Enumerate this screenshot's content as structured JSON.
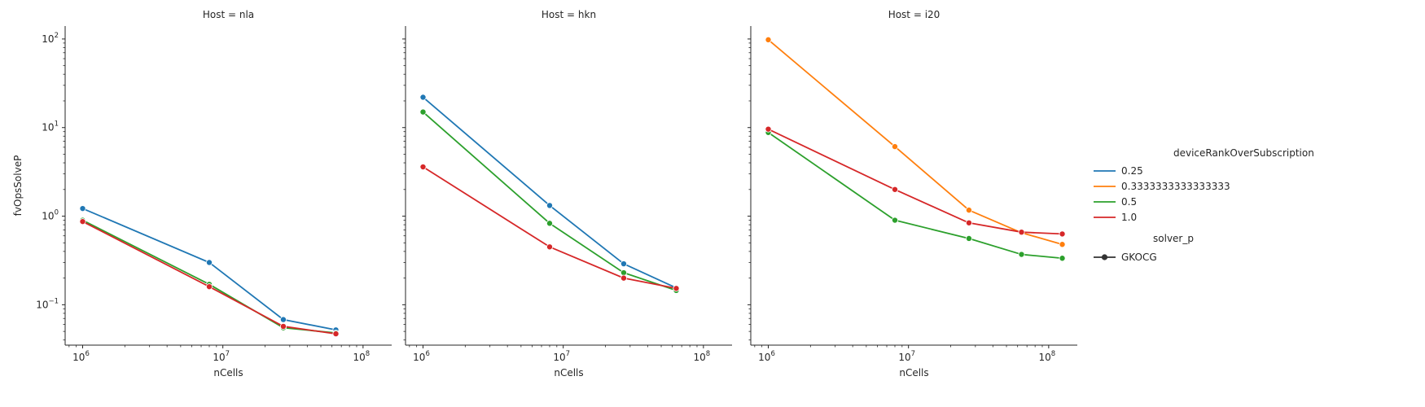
{
  "chart_data": [
    {
      "type": "line",
      "title": "Host = nla",
      "xlabel": "nCells",
      "ylabel": "fvOpsSolveP",
      "xscale": "log",
      "yscale": "log",
      "xlim": [
        750000,
        160000000
      ],
      "ylim": [
        0.035,
        140
      ],
      "xticks": [
        {
          "v": 1000000,
          "b": "10",
          "e": "6"
        },
        {
          "v": 10000000,
          "b": "10",
          "e": "7"
        },
        {
          "v": 100000000,
          "b": "10",
          "e": "8"
        }
      ],
      "yticks": [
        {
          "v": 0.1,
          "b": "10",
          "e": "−1"
        },
        {
          "v": 1,
          "b": "10",
          "e": "0"
        },
        {
          "v": 10,
          "b": "10",
          "e": "1"
        },
        {
          "v": 100,
          "b": "10",
          "e": "2"
        }
      ],
      "grid": false,
      "series": [
        {
          "name": "0.25",
          "color": "#1f77b4",
          "x": [
            1000000,
            8000000,
            27000000,
            64000000
          ],
          "y": [
            1.22,
            0.3,
            0.068,
            0.052
          ]
        },
        {
          "name": "0.5",
          "color": "#2ca02c",
          "x": [
            1000000,
            8000000,
            27000000,
            64000000
          ],
          "y": [
            0.9,
            0.17,
            0.055,
            0.048
          ]
        },
        {
          "name": "1.0",
          "color": "#d62728",
          "x": [
            1000000,
            8000000,
            27000000,
            64000000
          ],
          "y": [
            0.87,
            0.16,
            0.057,
            0.047
          ]
        }
      ]
    },
    {
      "type": "line",
      "title": "Host = hkn",
      "xlabel": "nCells",
      "ylabel": "",
      "xscale": "log",
      "yscale": "log",
      "xlim": [
        750000,
        160000000
      ],
      "ylim": [
        0.035,
        140
      ],
      "xticks": [
        {
          "v": 1000000,
          "b": "10",
          "e": "6"
        },
        {
          "v": 10000000,
          "b": "10",
          "e": "7"
        },
        {
          "v": 100000000,
          "b": "10",
          "e": "8"
        }
      ],
      "yticks": [],
      "grid": false,
      "series": [
        {
          "name": "0.25",
          "color": "#1f77b4",
          "x": [
            1000000,
            8000000,
            27000000,
            64000000
          ],
          "y": [
            22.0,
            1.32,
            0.29,
            0.155
          ]
        },
        {
          "name": "0.5",
          "color": "#2ca02c",
          "x": [
            1000000,
            8000000,
            27000000,
            64000000
          ],
          "y": [
            15.0,
            0.83,
            0.23,
            0.145
          ]
        },
        {
          "name": "1.0",
          "color": "#d62728",
          "x": [
            1000000,
            8000000,
            27000000,
            64000000
          ],
          "y": [
            3.6,
            0.45,
            0.2,
            0.153
          ]
        }
      ]
    },
    {
      "type": "line",
      "title": "Host = i20",
      "xlabel": "nCells",
      "ylabel": "",
      "xscale": "log",
      "yscale": "log",
      "xlim": [
        750000,
        160000000
      ],
      "ylim": [
        0.035,
        140
      ],
      "xticks": [
        {
          "v": 1000000,
          "b": "10",
          "e": "6"
        },
        {
          "v": 10000000,
          "b": "10",
          "e": "7"
        },
        {
          "v": 100000000,
          "b": "10",
          "e": "8"
        }
      ],
      "yticks": [],
      "grid": false,
      "series": [
        {
          "name": "0.3333333333333333",
          "color": "#ff7f0e",
          "x": [
            1000000,
            8000000,
            27000000,
            64000000,
            125000000
          ],
          "y": [
            98.0,
            6.1,
            1.17,
            0.65,
            0.48
          ]
        },
        {
          "name": "0.5",
          "color": "#2ca02c",
          "x": [
            1000000,
            8000000,
            27000000,
            64000000,
            125000000
          ],
          "y": [
            8.8,
            0.9,
            0.56,
            0.37,
            0.335
          ]
        },
        {
          "name": "1.0",
          "color": "#d62728",
          "x": [
            1000000,
            8000000,
            27000000,
            64000000,
            125000000
          ],
          "y": [
            9.6,
            2.0,
            0.84,
            0.66,
            0.63
          ]
        }
      ]
    }
  ],
  "legend": {
    "hue_title": "deviceRankOverSubscription",
    "hue_entries": [
      {
        "label": "0.25",
        "color": "#1f77b4"
      },
      {
        "label": "0.3333333333333333",
        "color": "#ff7f0e"
      },
      {
        "label": "0.5",
        "color": "#2ca02c"
      },
      {
        "label": "1.0",
        "color": "#d62728"
      }
    ],
    "style_title": "solver_p",
    "style_entries": [
      {
        "label": "GKOCG",
        "color": "#333333"
      }
    ],
    "placement": "right"
  }
}
